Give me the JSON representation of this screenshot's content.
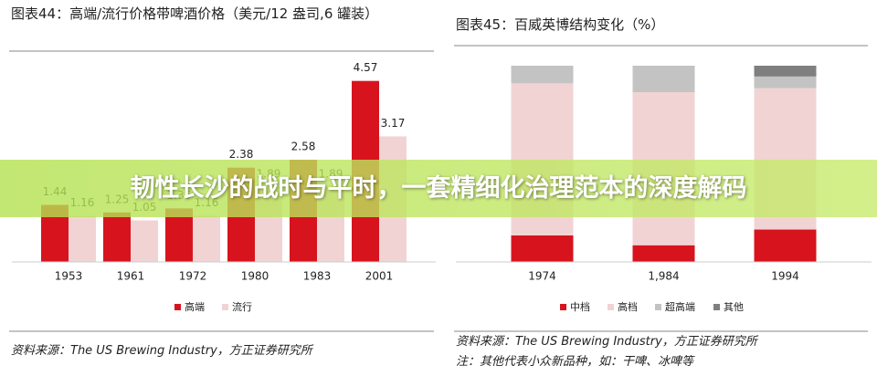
{
  "banner": "韧性长沙的战时与平时，一套精细化治理范本的深度解码",
  "chart_data": [
    {
      "type": "bar",
      "title": "图表44：高端/流行价格带啤酒价格（美元/12 盎司,6 罐装）",
      "categories": [
        "1953",
        "1961",
        "1972",
        "1980",
        "1983",
        "2001"
      ],
      "series": [
        {
          "name": "高端",
          "color": "#d7141e",
          "values": [
            1.44,
            1.25,
            1.35,
            2.38,
            2.58,
            4.57
          ]
        },
        {
          "name": "流行",
          "color": "#f2d3d3",
          "values": [
            1.16,
            1.05,
            1.16,
            1.89,
            1.89,
            3.17
          ]
        }
      ],
      "ylim": [
        0,
        5
      ],
      "stacked": false,
      "value_labels_shown": true,
      "source": "资料来源：The US Brewing Industry，方正证券研究所"
    },
    {
      "type": "bar",
      "title": "图表45：百威英博结构变化（%）",
      "categories": [
        "1974",
        "1,984",
        "1994"
      ],
      "series": [
        {
          "name": "中档",
          "color": "#d7141e",
          "values": [
            13.5,
            8.5,
            16.5
          ]
        },
        {
          "name": "高档",
          "color": "#f2d3d3",
          "values": [
            77.5,
            78,
            72
          ]
        },
        {
          "name": "超高端",
          "color": "#c3c3c3",
          "values": [
            9,
            13.5,
            6
          ]
        },
        {
          "name": "其他",
          "color": "#7f7f7f",
          "values": [
            0,
            0,
            5.5
          ]
        }
      ],
      "ylim": [
        0,
        100
      ],
      "stacked": true,
      "value_labels_shown": false,
      "source": "资料来源：The US Brewing Industry，方正证券研究所",
      "note": "注：其他代表小众新品种，如：干啤、冰啤等"
    }
  ]
}
